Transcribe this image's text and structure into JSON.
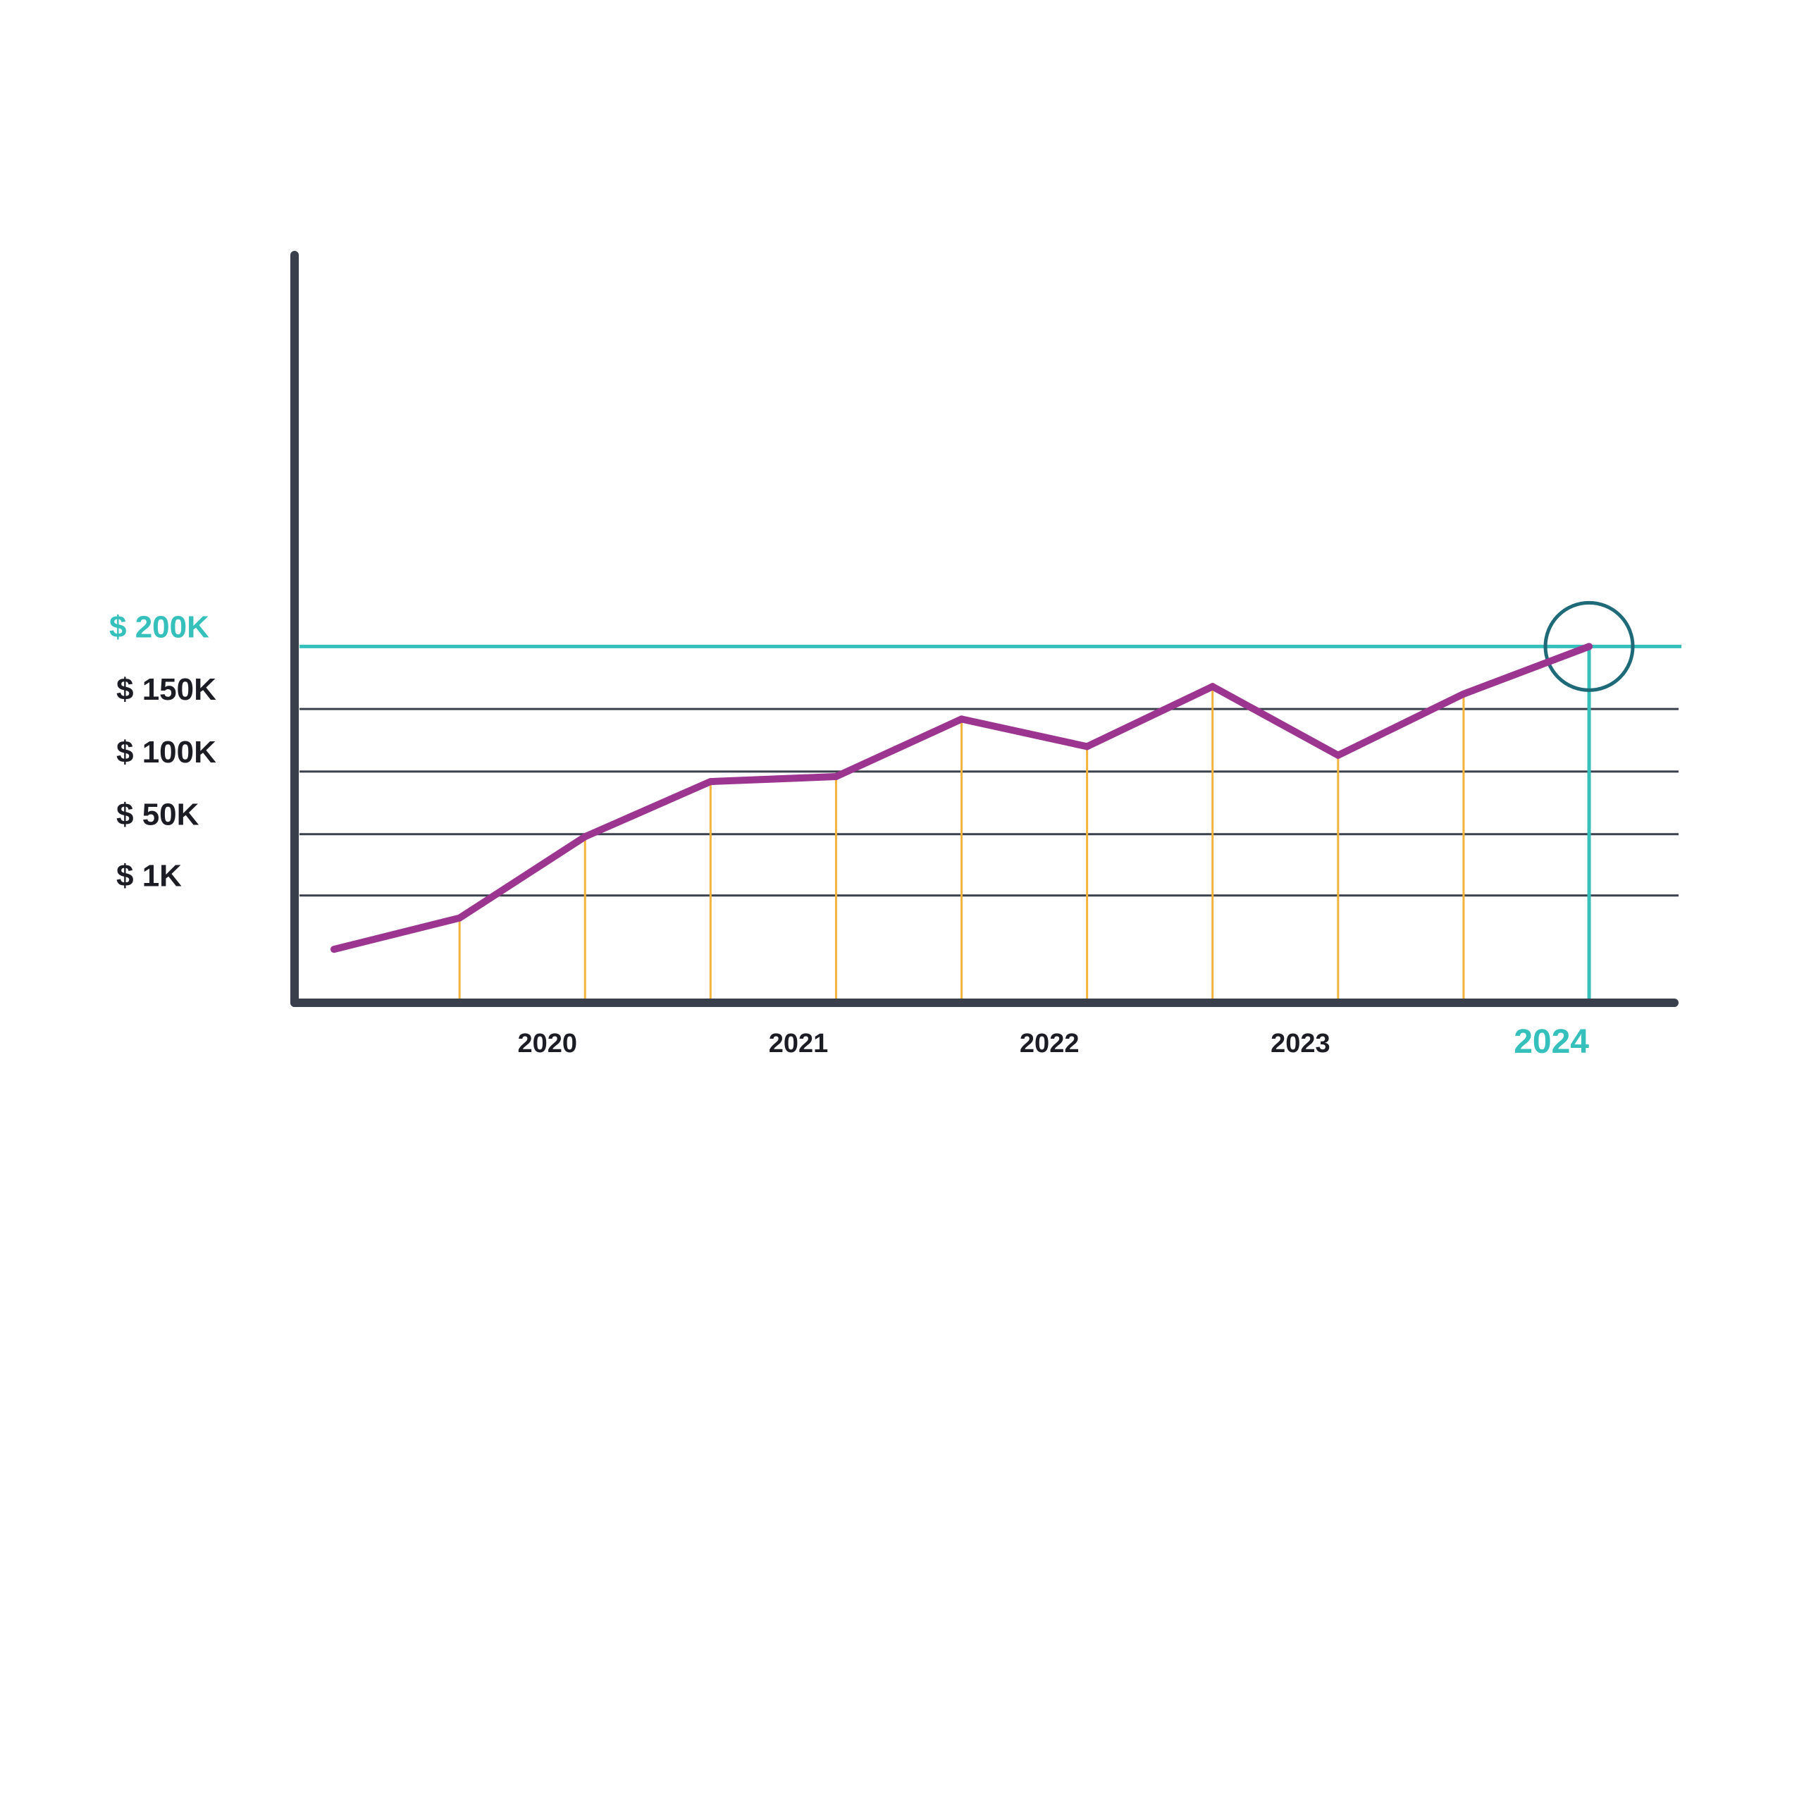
{
  "chart_data": {
    "type": "line",
    "y_ticks": [
      {
        "label": "$ 1K",
        "value": 1
      },
      {
        "label": "$ 50K",
        "value": 50
      },
      {
        "label": "$ 100K",
        "value": 100
      },
      {
        "label": "$ 150K",
        "value": 150
      },
      {
        "label": "$ 200K",
        "value": 200,
        "highlight": true
      }
    ],
    "x_ticks": [
      {
        "label": "2020",
        "value": 2020
      },
      {
        "label": "2021",
        "value": 2021
      },
      {
        "label": "2022",
        "value": 2022
      },
      {
        "label": "2023",
        "value": 2023
      },
      {
        "label": "2024",
        "value": 2024,
        "highlight": true
      }
    ],
    "series": [
      {
        "points": [
          {
            "x": 2019.15,
            "y": -42
          },
          {
            "x": 2019.65,
            "y": -17
          },
          {
            "x": 2020.15,
            "y": 48
          },
          {
            "x": 2020.65,
            "y": 92
          },
          {
            "x": 2021.15,
            "y": 96
          },
          {
            "x": 2021.65,
            "y": 142
          },
          {
            "x": 2022.15,
            "y": 120
          },
          {
            "x": 2022.65,
            "y": 168
          },
          {
            "x": 2023.15,
            "y": 113
          },
          {
            "x": 2023.65,
            "y": 162
          },
          {
            "x": 2024.15,
            "y": 200
          }
        ]
      }
    ],
    "highlight_point": {
      "x": 2024.15,
      "y": 200
    },
    "grid": true,
    "colors": {
      "line": "#9b3590",
      "axis": "#3a3f4c",
      "gridline": "#3a3f4c",
      "dropline": "#f2b43c",
      "highlight": "#35c0bc",
      "highlight_circle": "#1f6a78",
      "label": "#1c1c24"
    }
  }
}
